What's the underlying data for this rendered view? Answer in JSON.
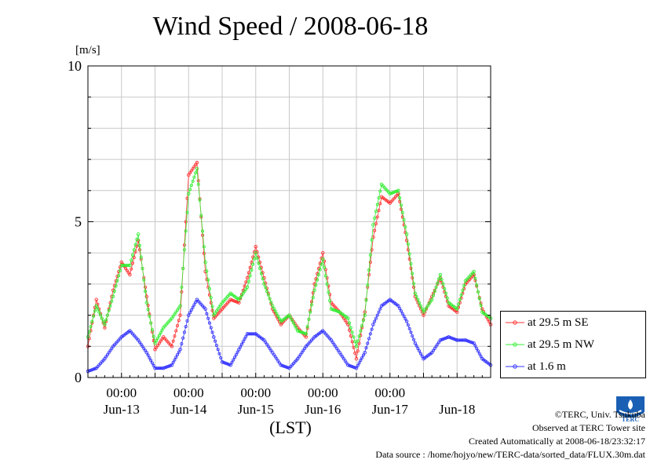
{
  "title": "Wind Speed / 2008-06-18",
  "unit_label": "[m/s]",
  "x_axis_label": "(LST)",
  "legend": [
    {
      "label": "at 29.5 m SE",
      "color": "#ff3333"
    },
    {
      "label": "at 29.5 m NW",
      "color": "#33ee33"
    },
    {
      "label": "at 1.6 m",
      "color": "#3333ff"
    }
  ],
  "footer": {
    "copyright": "©TERC, Univ. Tsukuba",
    "observed": "Observed at TERC Tower site",
    "created": "Created Automatically at 2008-06-18/23:32:17",
    "source": "Data source : /home/hojyo/new/TERC-data/sorted_data/FLUX.30m.dat"
  },
  "logo_text": "TERC",
  "chart_data": {
    "type": "line",
    "title": "Wind Speed / 2008-06-18",
    "ylabel": "[m/s]",
    "xlabel": "(LST)",
    "ylim": [
      0,
      10
    ],
    "yticks": [
      0,
      5,
      10
    ],
    "x_unit": "hours since Jun-12 12:00",
    "xlim": [
      0,
      144
    ],
    "x_time_ticks": [
      {
        "x": 12,
        "label": "00:00"
      },
      {
        "x": 36,
        "label": "00:00"
      },
      {
        "x": 60,
        "label": "00:00"
      },
      {
        "x": 84,
        "label": "00:00"
      },
      {
        "x": 108,
        "label": "00:00"
      }
    ],
    "x_day_labels": [
      {
        "x": 12,
        "label": "Jun-13"
      },
      {
        "x": 36,
        "label": "Jun-14"
      },
      {
        "x": 60,
        "label": "Jun-15"
      },
      {
        "x": 84,
        "label": "Jun-16"
      },
      {
        "x": 108,
        "label": "Jun-17"
      },
      {
        "x": 132,
        "label": "Jun-18"
      }
    ],
    "grid": true,
    "legend_position": "right",
    "series": [
      {
        "name": "at 29.5 m SE",
        "color": "#ff3333",
        "x": [
          0,
          3,
          6,
          9,
          12,
          15,
          18,
          21,
          24,
          27,
          30,
          33,
          36,
          39,
          42,
          45,
          48,
          51,
          54,
          57,
          60,
          63,
          66,
          69,
          72,
          75,
          78,
          81,
          84,
          87,
          90,
          93,
          96,
          99,
          102,
          105,
          108,
          111,
          114,
          117,
          120,
          123,
          126,
          129,
          132,
          135,
          138,
          141,
          144
        ],
        "y": [
          1.0,
          2.5,
          1.6,
          2.8,
          3.7,
          3.3,
          4.4,
          2.6,
          0.9,
          1.3,
          1.0,
          2.0,
          6.5,
          6.9,
          3.4,
          1.9,
          2.2,
          2.5,
          2.4,
          3.2,
          4.2,
          3.2,
          2.2,
          1.7,
          2.0,
          1.6,
          1.3,
          3.0,
          4.0,
          2.4,
          2.1,
          1.7,
          0.6,
          2.1,
          4.5,
          5.8,
          5.6,
          5.9,
          4.4,
          2.6,
          2.0,
          2.6,
          3.2,
          2.3,
          2.1,
          3.0,
          3.3,
          2.2,
          1.7
        ]
      },
      {
        "name": "at 29.5 m NW",
        "color": "#33ee33",
        "x": [
          0,
          3,
          6,
          9,
          12,
          15,
          18,
          21,
          24,
          27,
          30,
          33,
          36,
          39,
          42,
          45,
          48,
          51,
          54,
          57,
          60,
          63,
          66,
          69,
          72,
          75,
          78,
          81,
          84,
          87,
          90,
          93,
          96,
          99,
          102,
          105,
          108,
          111,
          114,
          117,
          120,
          123,
          126,
          129,
          132,
          135,
          138,
          141,
          144
        ],
        "y": [
          1.3,
          2.3,
          1.7,
          2.6,
          3.6,
          3.6,
          4.6,
          2.4,
          1.1,
          1.6,
          1.9,
          2.3,
          5.9,
          6.7,
          3.7,
          2.0,
          2.4,
          2.7,
          2.5,
          2.9,
          4.0,
          3.0,
          2.3,
          1.8,
          2.0,
          1.5,
          1.4,
          2.8,
          3.8,
          2.2,
          2.1,
          1.9,
          1.0,
          2.0,
          4.9,
          6.2,
          5.9,
          6.0,
          4.6,
          2.7,
          2.1,
          2.5,
          3.3,
          2.4,
          2.2,
          3.1,
          3.4,
          2.1,
          1.9
        ]
      },
      {
        "name": "at 1.6 m",
        "color": "#3333ff",
        "x": [
          0,
          3,
          6,
          9,
          12,
          15,
          18,
          21,
          24,
          27,
          30,
          33,
          36,
          39,
          42,
          45,
          48,
          51,
          54,
          57,
          60,
          63,
          66,
          69,
          72,
          75,
          78,
          81,
          84,
          87,
          90,
          93,
          96,
          99,
          102,
          105,
          108,
          111,
          114,
          117,
          120,
          123,
          126,
          129,
          132,
          135,
          138,
          141,
          144
        ],
        "y": [
          0.2,
          0.3,
          0.6,
          1.0,
          1.3,
          1.5,
          1.2,
          0.8,
          0.3,
          0.3,
          0.4,
          0.9,
          2.0,
          2.5,
          2.2,
          1.3,
          0.5,
          0.4,
          0.9,
          1.4,
          1.4,
          1.2,
          0.8,
          0.4,
          0.3,
          0.6,
          1.0,
          1.3,
          1.5,
          1.2,
          0.8,
          0.4,
          0.3,
          0.8,
          1.7,
          2.3,
          2.5,
          2.3,
          1.8,
          1.1,
          0.6,
          0.8,
          1.2,
          1.3,
          1.2,
          1.2,
          1.1,
          0.6,
          0.4
        ]
      }
    ]
  }
}
